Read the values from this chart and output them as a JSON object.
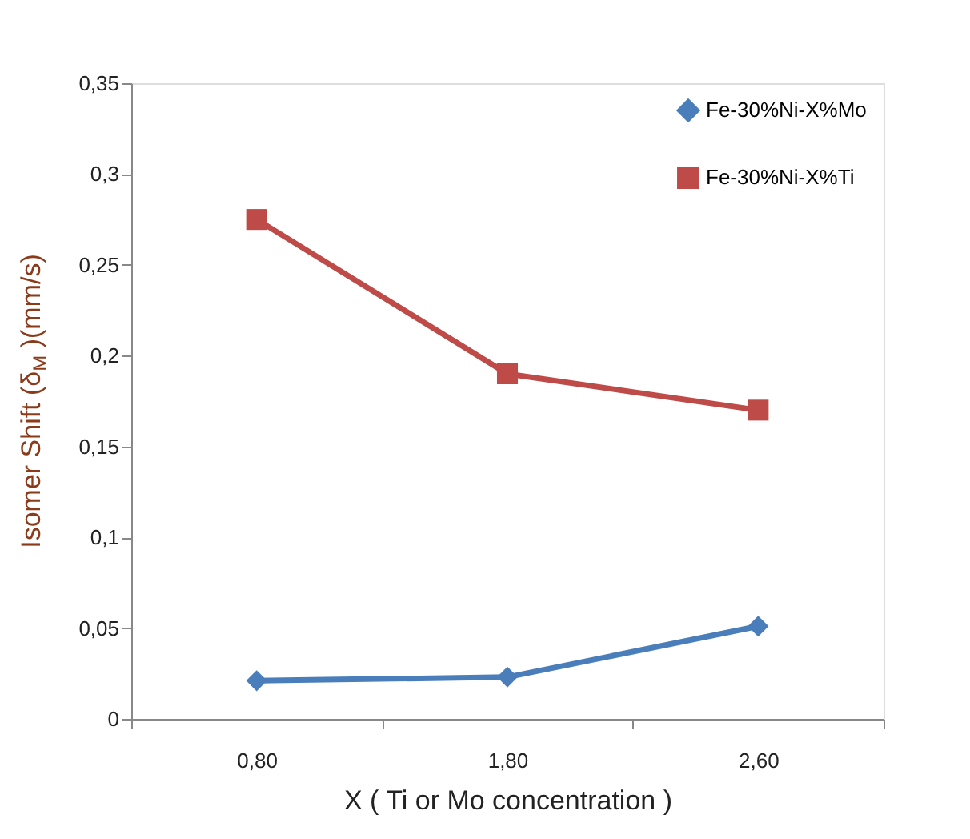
{
  "chart_data": {
    "type": "line",
    "xlabel": "X (  Ti or Mo concentration )",
    "ylabel": "Isomer Shift (δ$_{M}$ )(mm/s)",
    "categories": [
      "0,80",
      "1,80",
      "2,60"
    ],
    "series": [
      {
        "name": "Fe-30%Ni-X%Mo",
        "color": "#4a7ebb",
        "marker": "diamond",
        "values": [
          0.021,
          0.023,
          0.051
        ]
      },
      {
        "name": "Fe-30%Ni-X%Ti",
        "color": "#be4b48",
        "marker": "square",
        "values": [
          0.275,
          0.19,
          0.17
        ]
      }
    ],
    "ylim": [
      0,
      0.35
    ],
    "yticks": [
      0,
      {
        "value": 0.05,
        "label": "0,05"
      },
      {
        "value": 0.1,
        "label": "0,1"
      },
      {
        "value": 0.15,
        "label": "0,15"
      },
      {
        "value": 0.2,
        "label": "0,2"
      },
      {
        "value": 0.25,
        "label": "0,25"
      },
      {
        "value": 0.3,
        "label": "0,3"
      },
      {
        "value": 0.35,
        "label": "0,35"
      }
    ],
    "grid": false,
    "legend": "top right",
    "line_style": "solid"
  }
}
